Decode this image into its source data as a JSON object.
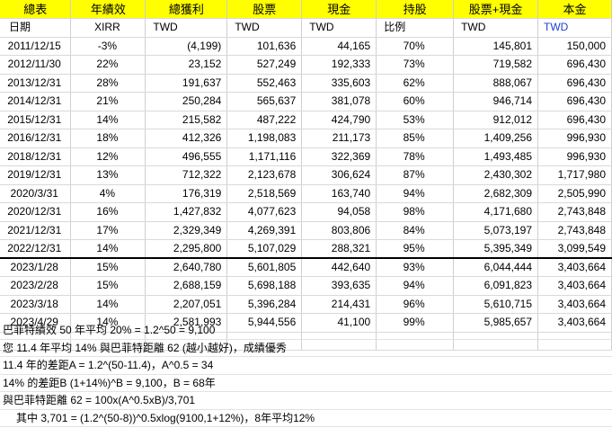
{
  "header": {
    "row1": [
      "總表",
      "年績效",
      "總獲利",
      "股票",
      "現金",
      "持股",
      "股票+現金",
      "本金"
    ],
    "row2": [
      "日期",
      "XIRR",
      "TWD",
      "TWD",
      "TWD",
      "比例",
      "TWD",
      "TWD"
    ]
  },
  "rows": [
    [
      "2011/12/15",
      "-3%",
      "(4,199)",
      "101,636",
      "44,165",
      "70%",
      "145,801",
      "150,000"
    ],
    [
      "2012/11/30",
      "22%",
      "23,152",
      "527,249",
      "192,333",
      "73%",
      "719,582",
      "696,430"
    ],
    [
      "2013/12/31",
      "28%",
      "191,637",
      "552,463",
      "335,603",
      "62%",
      "888,067",
      "696,430"
    ],
    [
      "2014/12/31",
      "21%",
      "250,284",
      "565,637",
      "381,078",
      "60%",
      "946,714",
      "696,430"
    ],
    [
      "2015/12/31",
      "14%",
      "215,582",
      "487,222",
      "424,790",
      "53%",
      "912,012",
      "696,430"
    ],
    [
      "2016/12/31",
      "18%",
      "412,326",
      "1,198,083",
      "211,173",
      "85%",
      "1,409,256",
      "996,930"
    ],
    [
      "2018/12/31",
      "12%",
      "496,555",
      "1,171,116",
      "322,369",
      "78%",
      "1,493,485",
      "996,930"
    ],
    [
      "2019/12/31",
      "13%",
      "712,322",
      "2,123,678",
      "306,624",
      "87%",
      "2,430,302",
      "1,717,980"
    ],
    [
      "2020/3/31",
      "4%",
      "176,319",
      "2,518,569",
      "163,740",
      "94%",
      "2,682,309",
      "2,505,990"
    ],
    [
      "2020/12/31",
      "16%",
      "1,427,832",
      "4,077,623",
      "94,058",
      "98%",
      "4,171,680",
      "2,743,848"
    ],
    [
      "2021/12/31",
      "17%",
      "2,329,349",
      "4,269,391",
      "803,806",
      "84%",
      "5,073,197",
      "2,743,848"
    ],
    [
      "2022/12/31",
      "14%",
      "2,295,800",
      "5,107,029",
      "288,321",
      "95%",
      "5,395,349",
      "3,099,549"
    ],
    [
      "2023/1/28",
      "15%",
      "2,640,780",
      "5,601,805",
      "442,640",
      "93%",
      "6,044,444",
      "3,403,664"
    ],
    [
      "2023/2/28",
      "15%",
      "2,688,159",
      "5,698,188",
      "393,635",
      "94%",
      "6,091,823",
      "3,403,664"
    ],
    [
      "2023/3/18",
      "14%",
      "2,207,051",
      "5,396,284",
      "214,431",
      "96%",
      "5,610,715",
      "3,403,664"
    ],
    [
      "2023/4/29",
      "14%",
      "2,581,993",
      "5,944,556",
      "41,100",
      "99%",
      "5,985,657",
      "3,403,664"
    ]
  ],
  "notes": [
    "巴菲特績效 50 年平均 20% = 1.2^50 = 9,100",
    "您 11.4 年平均 14% 與巴菲特距離 62 (越小越好)，成績優秀",
    "11.4 年的差距A = 1.2^(50-11.4)，A^0.5 = 34",
    "14% 的差距B (1+14%)^B = 9,100，B = 68年",
    "與巴菲特距離 62 = 100x(A^0.5xB)/3,701",
    "其中 3,701 = (1.2^(50-8))^0.5xlog(9100,1+12%)，8年平均12%"
  ],
  "colors": {
    "header_bg": "#ffff00",
    "blue_text": "#1f3fd8",
    "separator": "#000000"
  }
}
